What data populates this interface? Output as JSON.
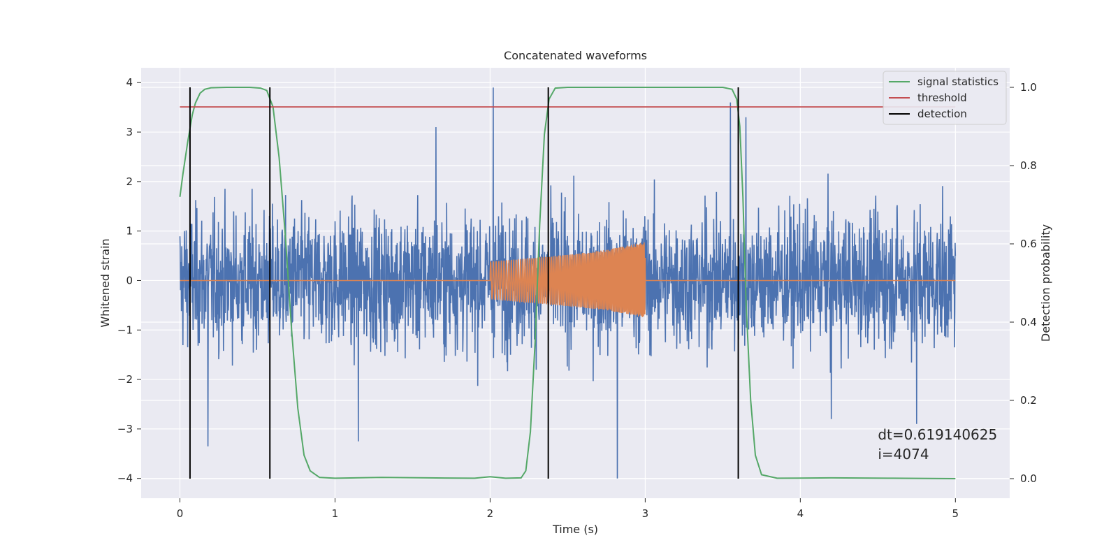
{
  "chart_data": {
    "type": "line",
    "title": "Concatenated waveforms",
    "xlabel": "Time (s)",
    "ylabel": "Whitened strain",
    "ylabel_right": "Detection probability",
    "xlim": [
      -0.25,
      5.35
    ],
    "ylim": [
      -4.4,
      4.3
    ],
    "ylim_right": [
      -0.05,
      1.05
    ],
    "x_ticks": [
      0,
      1,
      2,
      3,
      4,
      5
    ],
    "y_ticks": [
      -4,
      -3,
      -2,
      -1,
      0,
      1,
      2,
      3,
      4
    ],
    "y_ticks_right": [
      0.0,
      0.2,
      0.4,
      0.6,
      0.8,
      1.0
    ],
    "x_tick_labels": [
      "0",
      "1",
      "2",
      "3",
      "4",
      "5"
    ],
    "y_tick_labels": [
      "−4",
      "−3",
      "−2",
      "−1",
      "0",
      "1",
      "2",
      "3",
      "4"
    ],
    "y_tick_labels_right": [
      "0.0",
      "0.2",
      "0.4",
      "0.6",
      "0.8",
      "1.0"
    ],
    "grid": true,
    "legend_position": "top-right",
    "legend": [
      "signal statistics",
      "threshold",
      "detection"
    ],
    "series": [
      {
        "name": "whitened strain (noise)",
        "axis": "left",
        "color": "#4c72b0",
        "description": "Gaussian-like noise, x range 0 to 5 s, typical amplitude within about ±2.5, extremes about +3.9 / -4.0",
        "x_range": [
          0,
          5
        ],
        "peak_points": [
          {
            "x": 2.02,
            "y": 3.9
          },
          {
            "x": 2.82,
            "y": -4.0
          },
          {
            "x": 0.18,
            "y": -3.35
          },
          {
            "x": 1.15,
            "y": -3.25
          },
          {
            "x": 3.55,
            "y": 3.6
          },
          {
            "x": 3.65,
            "y": 3.3
          },
          {
            "x": 1.65,
            "y": 3.1
          },
          {
            "x": 4.2,
            "y": -2.8
          },
          {
            "x": 4.75,
            "y": -2.9
          }
        ]
      },
      {
        "name": "waveform",
        "axis": "left",
        "color": "#dd8452",
        "description": "Zero line from 0 to 5 s with an injected chirp between 2 s and 3 s",
        "x": [
          0,
          2,
          2.25,
          2.5,
          2.75,
          3,
          3.001,
          5
        ],
        "envelope_upper": [
          0,
          0.38,
          0.45,
          0.52,
          0.62,
          0.78,
          0,
          0
        ],
        "envelope_lower": [
          0,
          -0.38,
          -0.45,
          -0.52,
          -0.6,
          -0.75,
          0,
          0
        ]
      },
      {
        "name": "signal statistics",
        "axis": "right",
        "color": "#55a868",
        "x": [
          0,
          0.02,
          0.05,
          0.08,
          0.1,
          0.13,
          0.16,
          0.2,
          0.3,
          0.45,
          0.52,
          0.56,
          0.6,
          0.64,
          0.68,
          0.72,
          0.76,
          0.8,
          0.84,
          0.9,
          1.0,
          1.3,
          1.6,
          1.9,
          2.0,
          2.1,
          2.2,
          2.23,
          2.26,
          2.29,
          2.32,
          2.35,
          2.38,
          2.42,
          2.5,
          3.0,
          3.5,
          3.56,
          3.59,
          3.61,
          3.63,
          3.65,
          3.68,
          3.71,
          3.75,
          3.85,
          4.2,
          4.6,
          5.0
        ],
        "values": [
          0.72,
          0.78,
          0.86,
          0.93,
          0.96,
          0.985,
          0.995,
          0.999,
          1.0,
          1.0,
          0.998,
          0.992,
          0.95,
          0.82,
          0.62,
          0.38,
          0.18,
          0.06,
          0.02,
          0.003,
          0.001,
          0.003,
          0.002,
          0.001,
          0.005,
          0.001,
          0.002,
          0.02,
          0.12,
          0.35,
          0.65,
          0.88,
          0.97,
          0.998,
          1.0,
          1.0,
          1.0,
          0.995,
          0.97,
          0.9,
          0.72,
          0.45,
          0.2,
          0.06,
          0.01,
          0.001,
          0.002,
          0.001,
          0.0
        ]
      },
      {
        "name": "threshold",
        "axis": "right",
        "color": "#c44e52",
        "x": [
          0,
          5
        ],
        "values": [
          0.95,
          0.95
        ]
      },
      {
        "name": "detection",
        "axis": "right",
        "color": "#000000",
        "type": "vlines",
        "x": [
          0.065,
          0.58,
          2.375,
          3.6
        ],
        "ymin": 0.0,
        "ymax": 1.0
      }
    ],
    "annotation": {
      "x": 4.5,
      "y": 0.1,
      "lines": [
        "dt=0.619140625",
        " i=4074"
      ]
    }
  }
}
